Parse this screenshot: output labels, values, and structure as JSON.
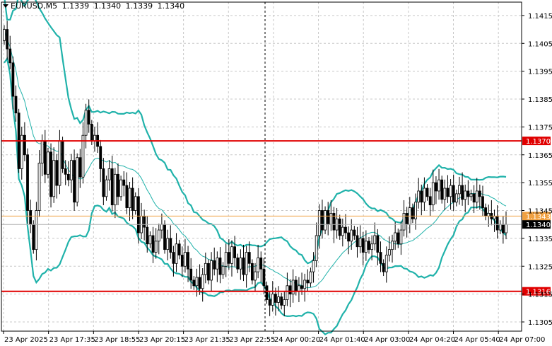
{
  "header": {
    "symbol": "EURUSD,M5",
    "open": "1.1339",
    "high": "1.1340",
    "low": "1.1339",
    "close": "1.1340"
  },
  "chart_data": {
    "type": "candlestick",
    "y_ticks": [
      "1.1415",
      "1.1405",
      "1.1395",
      "1.1385",
      "1.1375",
      "1.1365",
      "1.1355",
      "1.1345",
      "1.1335",
      "1.1325",
      "1.1315",
      "1.1305"
    ],
    "x_ticks": [
      "23 Apr 2025",
      "23 Apr 17:35",
      "23 Apr 18:55",
      "23 Apr 20:15",
      "23 Apr 21:35",
      "23 Apr 22:55",
      "24 Apr 00:20",
      "24 Apr 01:40",
      "24 Apr 03:00",
      "24 Apr 04:20",
      "24 Apr 05:40",
      "24 Apr 07:00"
    ],
    "ylim": [
      1.13017,
      1.14198
    ],
    "grid": true,
    "levels": [
      {
        "value": 1.137,
        "label": "1.1370",
        "color": "#e00000"
      },
      {
        "value": 1.1316,
        "label": "1.1316",
        "color": "#e00000"
      }
    ],
    "markers": [
      {
        "value": 1.1343,
        "label": "1.1343",
        "color": "#f0a040"
      },
      {
        "value": 1.134,
        "label": "1.1340",
        "color": "#000000"
      }
    ],
    "candle_closes": [
      1.141,
      1.1403,
      1.1398,
      1.1386,
      1.138,
      1.136,
      1.1372,
      1.1365,
      1.1345,
      1.134,
      1.1331,
      1.1345,
      1.1362,
      1.137,
      1.1358,
      1.1366,
      1.135,
      1.1363,
      1.1354,
      1.137,
      1.136,
      1.1358,
      1.1356,
      1.1363,
      1.1348,
      1.1364,
      1.1357,
      1.1372,
      1.1381,
      1.1376,
      1.137,
      1.1372,
      1.1368,
      1.136,
      1.135,
      1.1356,
      1.136,
      1.1347,
      1.1358,
      1.135,
      1.1356,
      1.1354,
      1.1346,
      1.1353,
      1.1345,
      1.135,
      1.1337,
      1.1343,
      1.1339,
      1.1333,
      1.1336,
      1.133,
      1.1334,
      1.1338,
      1.134,
      1.1331,
      1.1335,
      1.133,
      1.1326,
      1.1333,
      1.1329,
      1.1325,
      1.133,
      1.1324,
      1.132,
      1.1318,
      1.1321,
      1.1317,
      1.1322,
      1.1326,
      1.132,
      1.1327,
      1.1324,
      1.1328,
      1.1322,
      1.1325,
      1.133,
      1.1326,
      1.1332,
      1.1328,
      1.1324,
      1.1328,
      1.1322,
      1.133,
      1.1326,
      1.132,
      1.1323,
      1.1328,
      1.1324,
      1.1318,
      1.1313,
      1.1311,
      1.1315,
      1.1312,
      1.1314,
      1.1311,
      1.1313,
      1.1318,
      1.1315,
      1.132,
      1.1316,
      1.1318,
      1.1317,
      1.132,
      1.1319,
      1.1323,
      1.1327,
      1.1336,
      1.1345,
      1.1338,
      1.1345,
      1.134,
      1.1344,
      1.1338,
      1.1342,
      1.1336,
      1.1339,
      1.1337,
      1.1334,
      1.1338,
      1.1336,
      1.1332,
      1.1335,
      1.133,
      1.1334,
      1.1331,
      1.1333,
      1.1336,
      1.133,
      1.1326,
      1.1323,
      1.1329,
      1.1331,
      1.1334,
      1.1337,
      1.1333,
      1.1338,
      1.1344,
      1.134,
      1.1346,
      1.1342,
      1.1348,
      1.1352,
      1.1348,
      1.1353,
      1.135,
      1.1347,
      1.1355,
      1.1352,
      1.1356,
      1.1349,
      1.1353,
      1.135,
      1.1354,
      1.1348,
      1.1351,
      1.1354,
      1.1349,
      1.1352,
      1.135,
      1.1351,
      1.1348,
      1.1352,
      1.135,
      1.1346,
      1.1343,
      1.1344,
      1.1342,
      1.1343,
      1.1338,
      1.134,
      1.1337,
      1.134
    ]
  }
}
